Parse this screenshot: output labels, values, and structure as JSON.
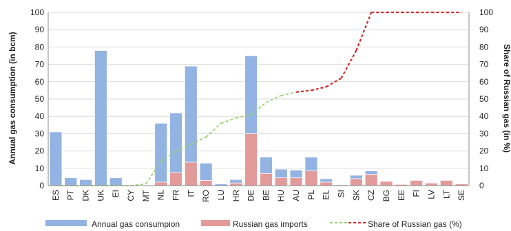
{
  "chart_data": {
    "type": "bar",
    "stacking": "overlay",
    "categories": [
      "ES",
      "PT",
      "DK",
      "UK",
      "EI",
      "CY",
      "MT",
      "NL",
      "FR",
      "IT",
      "RO",
      "LU",
      "HR",
      "DE",
      "BE",
      "HU",
      "AU",
      "PL",
      "EL",
      "SI",
      "SK",
      "CZ",
      "BG",
      "EE",
      "FI",
      "LV",
      "LT",
      "SE"
    ],
    "series": [
      {
        "name": "Annual gas consumpion",
        "type": "bar",
        "axis": "left",
        "color": "#93b3e3",
        "values": [
          31,
          4.5,
          3.5,
          78,
          4.5,
          0,
          0,
          36,
          42,
          69,
          13,
          1,
          3.5,
          75,
          16.5,
          9.5,
          9,
          16.5,
          4,
          0.8,
          6,
          8.5,
          2.5,
          0.7,
          3,
          1.5,
          3,
          1
        ]
      },
      {
        "name": "Russian gas imports",
        "type": "bar",
        "axis": "left",
        "color": "#e29a9a",
        "values": [
          0,
          0,
          0,
          0,
          0,
          0,
          0,
          2,
          7.5,
          13.5,
          3,
          0,
          1.5,
          30,
          7,
          4.5,
          4.5,
          8.5,
          2,
          0.5,
          4,
          6.5,
          2.5,
          0.7,
          3,
          1.5,
          3,
          1
        ]
      },
      {
        "name": "Share of Russian gas  (%)",
        "type": "line",
        "axis": "right",
        "color_low": "#9ccf6f",
        "color_high": "#cc2a2a",
        "values": [
          0,
          0,
          0,
          0,
          0,
          0,
          1,
          14,
          20,
          24,
          28,
          36,
          39,
          41,
          48,
          52,
          54,
          55,
          57,
          62,
          78,
          100,
          100,
          100,
          100,
          100,
          100,
          100
        ]
      }
    ],
    "ylabel": "Annual gas consumption (in bcm)",
    "y2label": "Share of Russian gas (in %)",
    "ylim": [
      0,
      100
    ],
    "y2lim": [
      0,
      100
    ],
    "yticks": [
      0,
      10,
      20,
      30,
      40,
      50,
      60,
      70,
      80,
      90,
      100
    ],
    "grid": true,
    "legend": "bottom"
  }
}
